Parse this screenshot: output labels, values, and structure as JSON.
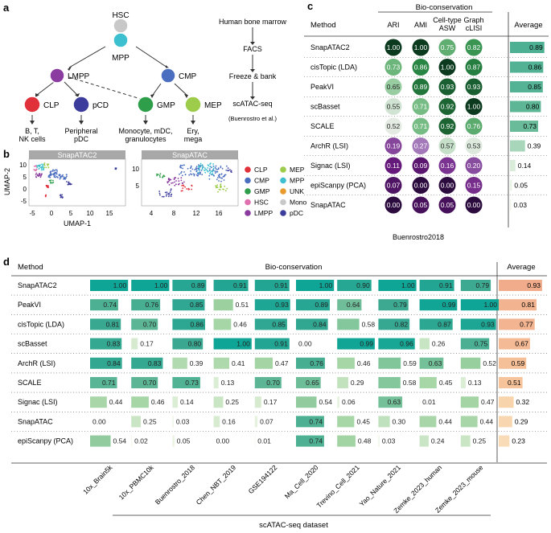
{
  "panel_a": {
    "label": "a",
    "nodes": {
      "hsc": "HSC",
      "mpp": "MPP",
      "lmpp": "LMPP",
      "cmp": "CMP",
      "clp": "CLP",
      "pcd": "pCD",
      "gmp": "GMP",
      "mep": "MEP"
    },
    "leaf_labels": {
      "clp_1": "B, T,",
      "clp_2": "NK cells",
      "pcd_1": "Peripheral",
      "pcd_2": "pDC",
      "gmp_1": "Monocyte, mDC,",
      "gmp_2": "granulocytes",
      "mep_1": "Ery,",
      "mep_2": "mega"
    },
    "pipeline": [
      "Human bone marrow",
      "FACS",
      "Freeze & bank",
      "scATAC-seq"
    ],
    "citation": "(Buenrostro et al.)",
    "colors": {
      "hsc": "#c8c8c8",
      "mpp": "#3cc0d0",
      "lmpp": "#8a3ca0",
      "cmp": "#4a6ec0",
      "clp": "#e0303a",
      "pcd": "#3c3c9c",
      "gmp": "#2e9e4a",
      "mep": "#9ccc4a"
    }
  },
  "panel_b": {
    "label": "b",
    "plot1_title": "SnapATAC2",
    "plot2_title": "SnapATAC",
    "ylabel": "UMAP-2",
    "xlabel": "UMAP-1",
    "plot1_xticks": [
      "-5",
      "0",
      "5",
      "10",
      "15"
    ],
    "plot1_yticks": [
      "10",
      "5",
      "0",
      "-5"
    ],
    "plot2_xticks": [
      "4",
      "8",
      "12",
      "16"
    ],
    "plot2_yticks": [
      "10",
      "5"
    ],
    "legend": [
      {
        "name": "CLP",
        "color": "#e0303a"
      },
      {
        "name": "MEP",
        "color": "#9ccc4a"
      },
      {
        "name": "CMP",
        "color": "#4a6ec0"
      },
      {
        "name": "MPP",
        "color": "#3cc0d0"
      },
      {
        "name": "GMP",
        "color": "#2e9e4a"
      },
      {
        "name": "UNK",
        "color": "#e89a2c"
      },
      {
        "name": "HSC",
        "color": "#e070b0"
      },
      {
        "name": "Mono",
        "color": "#c8c8c8"
      },
      {
        "name": "LMPP",
        "color": "#8a3ca0"
      },
      {
        "name": "pDC",
        "color": "#3c3c9c"
      }
    ]
  },
  "chart_data": [
    {
      "type": "table",
      "title": "Buenrostro2018",
      "panel_label": "c",
      "method_header": "Method",
      "group_header": "Bio-conservation",
      "average_header": "Average",
      "columns": [
        [
          "ARI"
        ],
        [
          "AMI"
        ],
        [
          "Cell-type",
          "ASW"
        ],
        [
          "Graph",
          "cLISI"
        ]
      ],
      "methods": [
        "SnapATAC2",
        "cisTopic (LDA)",
        "PeakVI",
        "scBasset",
        "SCALE",
        "ArchR (LSI)",
        "Signac (LSI)",
        "epiScanpy (PCA)",
        "SnapATAC"
      ],
      "values": [
        [
          1.0,
          1.0,
          0.75,
          0.82
        ],
        [
          0.73,
          0.86,
          1.0,
          0.87
        ],
        [
          0.65,
          0.89,
          0.93,
          0.93
        ],
        [
          0.55,
          0.71,
          0.92,
          1.0
        ],
        [
          0.52,
          0.71,
          0.92,
          0.76
        ],
        [
          0.19,
          0.27,
          0.57,
          0.53
        ],
        [
          0.11,
          0.09,
          0.16,
          0.2
        ],
        [
          0.07,
          0.0,
          0.0,
          0.15
        ],
        [
          0.0,
          0.05,
          0.05,
          0.0
        ]
      ],
      "averages": [
        0.89,
        0.86,
        0.85,
        0.8,
        0.73,
        0.39,
        0.14,
        0.05,
        0.03
      ]
    },
    {
      "type": "table",
      "panel_label": "d",
      "method_header": "Method",
      "group_header": "Bio-conservation",
      "average_header": "Average",
      "xlabel": "scATAC-seq dataset",
      "datasets": [
        "10x_Brain5k",
        "10x_PBMC10k",
        "Buenrostro_2018",
        "Chen_NBT_2019",
        "GSE194122",
        "Ma_Cell_2020",
        "Trevino_Cell_2021",
        "Yao_Nature_2021",
        "Zemke_2023_human",
        "Zemke_2023_mouse"
      ],
      "methods": [
        "SnapATAC2",
        "PeakVI",
        "cisTopic (LDA)",
        "scBasset",
        "ArchR (LSI)",
        "SCALE",
        "Signac (LSI)",
        "SnapATAC",
        "epiScanpy (PCA)"
      ],
      "values": [
        [
          1.0,
          1.0,
          0.89,
          0.91,
          0.91,
          1.0,
          0.9,
          1.0,
          0.91,
          0.79
        ],
        [
          0.74,
          0.76,
          0.85,
          0.51,
          0.93,
          0.89,
          0.64,
          0.79,
          0.99,
          1.0
        ],
        [
          0.81,
          0.7,
          0.86,
          0.46,
          0.85,
          0.84,
          0.58,
          0.82,
          0.87,
          0.93
        ],
        [
          0.83,
          0.17,
          0.8,
          1.0,
          0.91,
          0.0,
          0.99,
          0.96,
          0.26,
          0.75
        ],
        [
          0.84,
          0.83,
          0.39,
          0.41,
          0.47,
          0.76,
          0.46,
          0.59,
          0.63,
          0.52
        ],
        [
          0.71,
          0.7,
          0.73,
          0.13,
          0.7,
          0.65,
          0.29,
          0.58,
          0.45,
          0.13
        ],
        [
          0.44,
          0.46,
          0.14,
          0.25,
          0.17,
          0.54,
          0.06,
          0.63,
          0.01,
          0.47
        ],
        [
          0.0,
          0.25,
          0.03,
          0.16,
          0.07,
          0.74,
          0.45,
          0.3,
          0.44,
          0.44
        ],
        [
          0.54,
          0.02,
          0.05,
          0.0,
          0.01,
          0.74,
          0.48,
          0.03,
          0.24,
          0.25
        ]
      ],
      "averages": [
        0.93,
        0.81,
        0.77,
        0.67,
        0.59,
        0.51,
        0.32,
        0.29,
        0.23
      ]
    }
  ]
}
